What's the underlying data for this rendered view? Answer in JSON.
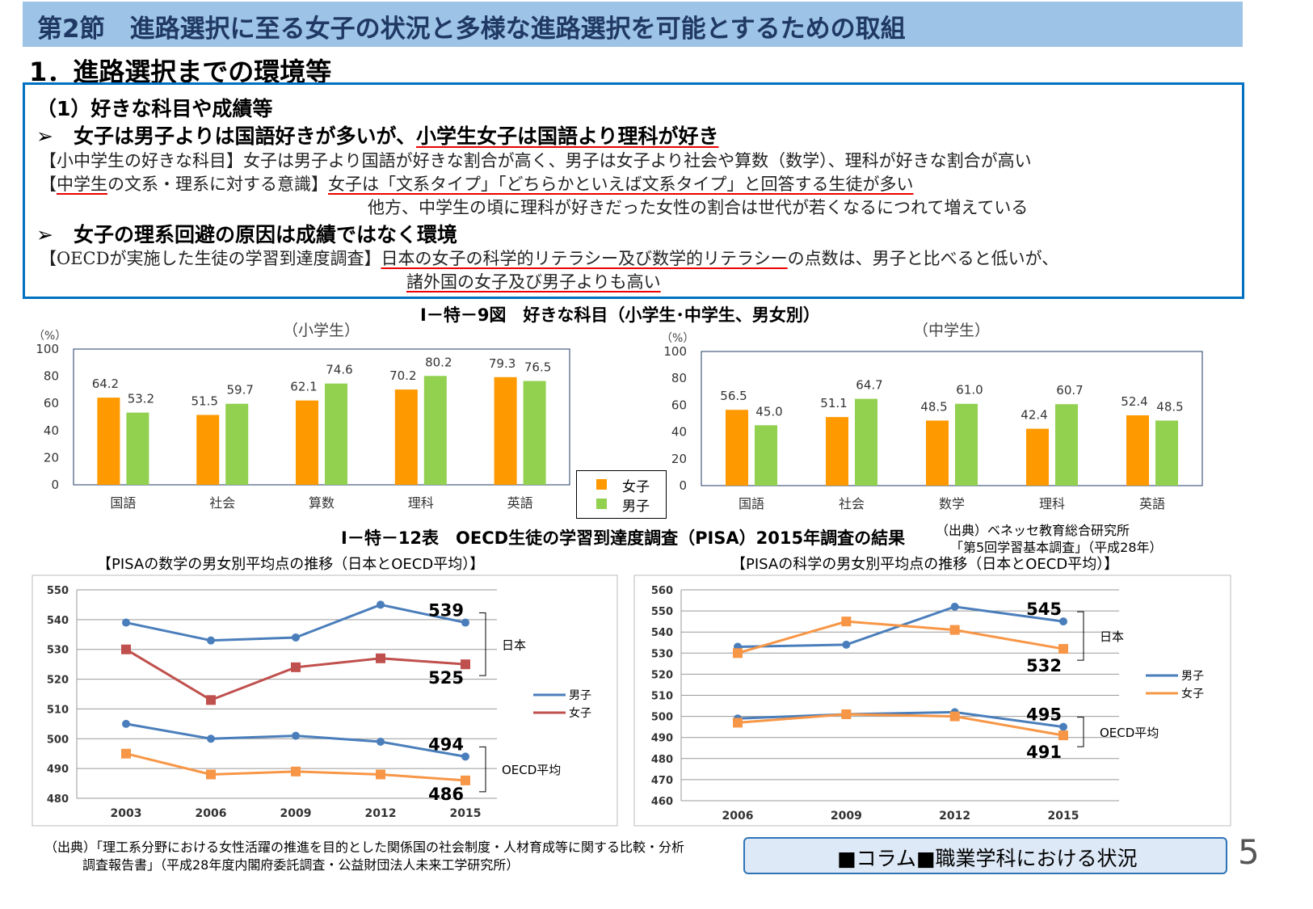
{
  "header": {
    "title": "第2節　進路選択に至る女子の状況と多様な進路選択を可能とするための取組"
  },
  "section": "1．進路選択までの環境等",
  "box": {
    "subhead": "（1）好きな科目や成績等",
    "bullet1_pre": "女子は男子よりは国語好きが多いが、",
    "bullet1_u": "小学生女子は国語より理科が好き",
    "line1": "【小中学生の好きな科目】女子は男子より国語が好きな割合が高く、男子は女子より社会や算数（数学）、理科が好きな割合が高い",
    "line2_a": "【",
    "line2_u1": "中学生",
    "line2_b": "の文系・理系に対する意識】",
    "line2_u2": "女子は「文系タイプ」「どちらかといえば文系タイプ」と回答する生徒が多い",
    "line3": "他方、中学生の頃に理科が好きだった女性の割合は世代が若くなるにつれて増えている",
    "bullet2": "女子の理系回避の原因は成績ではなく環境",
    "line4_a": "【OECDが実施した生徒の学習到達度調査】",
    "line4_u": "日本の女子の科学的リテラシー及び数学的リテラシー",
    "line4_b": "の点数は、男子と比べると低いが、",
    "line5_u": "諸外国の女子及び男子よりも高い"
  },
  "fig9": {
    "title": "Ⅰ－特－9図　好きな科目（小学生･中学生、男女別）",
    "legend": [
      "女子",
      "男子"
    ],
    "source": [
      "（出典）ベネッセ教育総合研究所",
      "「第5回学習基本調査」（平成28年）"
    ]
  },
  "chart_data": [
    {
      "type": "bar",
      "title": "（小学生）",
      "ylabel": "（%）",
      "ylim": [
        0,
        100
      ],
      "categories": [
        "国語",
        "社会",
        "算数",
        "理科",
        "英語"
      ],
      "series": [
        {
          "name": "女子",
          "color": "#ff9900",
          "values": [
            64.2,
            51.5,
            62.1,
            70.2,
            79.3
          ]
        },
        {
          "name": "男子",
          "color": "#92d050",
          "values": [
            53.2,
            59.7,
            74.6,
            80.2,
            76.5
          ]
        }
      ]
    },
    {
      "type": "bar",
      "title": "（中学生）",
      "ylabel": "（%）",
      "ylim": [
        0,
        100
      ],
      "categories": [
        "国語",
        "社会",
        "数学",
        "理科",
        "英語"
      ],
      "series": [
        {
          "name": "女子",
          "color": "#ff9900",
          "values": [
            56.5,
            51.1,
            48.5,
            42.4,
            52.4
          ]
        },
        {
          "name": "男子",
          "color": "#92d050",
          "values": [
            45.0,
            64.7,
            61.0,
            60.7,
            48.5
          ]
        }
      ]
    },
    {
      "type": "line",
      "title": "【PISAの数学の男女別平均点の推移（日本とOECD平均）】",
      "ylim": [
        480,
        550
      ],
      "x": [
        "2003",
        "2006",
        "2009",
        "2012",
        "2015"
      ],
      "series": [
        {
          "name": "男子",
          "group": "日本",
          "color": "#4a7ebb",
          "values": [
            539,
            533,
            534,
            545,
            539
          ]
        },
        {
          "name": "女子",
          "group": "日本",
          "color": "#c0504d",
          "values": [
            530,
            513,
            524,
            527,
            525
          ]
        },
        {
          "name": "男子",
          "group": "OECD平均",
          "color": "#4a7ebb",
          "values": [
            505,
            500,
            501,
            499,
            494
          ]
        },
        {
          "name": "女子",
          "group": "OECD平均",
          "color": "#f79646",
          "values": [
            495,
            488,
            489,
            488,
            486
          ]
        }
      ],
      "labels": [
        "539",
        "525",
        "494",
        "486"
      ],
      "groups": [
        "日本",
        "OECD平均"
      ],
      "legend": [
        "男子",
        "女子"
      ]
    },
    {
      "type": "line",
      "title": "【PISAの科学の男女別平均点の推移（日本とOECD平均）】",
      "ylim": [
        460,
        560
      ],
      "x": [
        "2006",
        "2009",
        "2012",
        "2015"
      ],
      "series": [
        {
          "name": "男子",
          "group": "日本",
          "color": "#4a7ebb",
          "values": [
            533,
            534,
            552,
            545
          ]
        },
        {
          "name": "女子",
          "group": "日本",
          "color": "#f79646",
          "values": [
            530,
            545,
            541,
            532
          ]
        },
        {
          "name": "男子",
          "group": "OECD平均",
          "color": "#4a7ebb",
          "values": [
            499,
            501,
            502,
            495
          ]
        },
        {
          "name": "女子",
          "group": "OECD平均",
          "color": "#f79646",
          "values": [
            497,
            501,
            500,
            491
          ]
        }
      ],
      "labels": [
        "545",
        "532",
        "495",
        "491"
      ],
      "groups": [
        "日本",
        "OECD平均"
      ],
      "legend": [
        "男子",
        "女子"
      ]
    }
  ],
  "table12": {
    "title": "Ⅰ－特－12表　OECD生徒の学習到達度調査（PISA）2015年調査の結果"
  },
  "source2": [
    "（出典）「理工系分野における女性活躍の推進を目的とした関係国の社会制度・人材育成等に関する比較・分析",
    "調査報告書」（平成28年度内閣府委託調査・公益財団法人未来工学研究所）"
  ],
  "column": "■コラム■職業学科における状況",
  "page": "5"
}
